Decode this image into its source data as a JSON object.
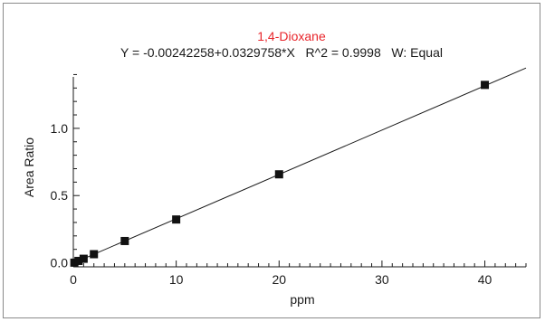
{
  "chart_data": {
    "type": "scatter",
    "title": "1,4-Dioxane",
    "subtitle": "Y = -0.00242258+0.0329758*X   R^2 = 0.9998   W: Equal",
    "xlabel": "ppm",
    "ylabel": "Area Ratio",
    "xlim": [
      0,
      44
    ],
    "ylim": [
      -0.03,
      1.45
    ],
    "x_ticks": [
      0,
      10,
      20,
      30,
      40
    ],
    "x_tick_labels": [
      "0",
      "10",
      "20",
      "30",
      "40"
    ],
    "y_ticks": [
      0.0,
      0.5,
      1.0
    ],
    "y_tick_labels": [
      "0.0",
      "0.5",
      "1.0"
    ],
    "grid": false,
    "colors": {
      "title": "#e8252b",
      "text": "#1a1a1a",
      "line": "#1a1a1a",
      "marker": "#111111",
      "frame": "#8a8a8a"
    },
    "series": [
      {
        "points": [
          {
            "x": 0.1,
            "y": 0.001
          },
          {
            "x": 0.5,
            "y": 0.014
          },
          {
            "x": 1,
            "y": 0.03
          },
          {
            "x": 2,
            "y": 0.064
          },
          {
            "x": 5,
            "y": 0.162
          },
          {
            "x": 10,
            "y": 0.322
          },
          {
            "x": 20,
            "y": 0.658
          },
          {
            "x": 40,
            "y": 1.323
          }
        ]
      }
    ],
    "fit": {
      "intercept": -0.00242258,
      "slope": 0.0329758,
      "x_start": 0,
      "x_end": 44
    }
  }
}
